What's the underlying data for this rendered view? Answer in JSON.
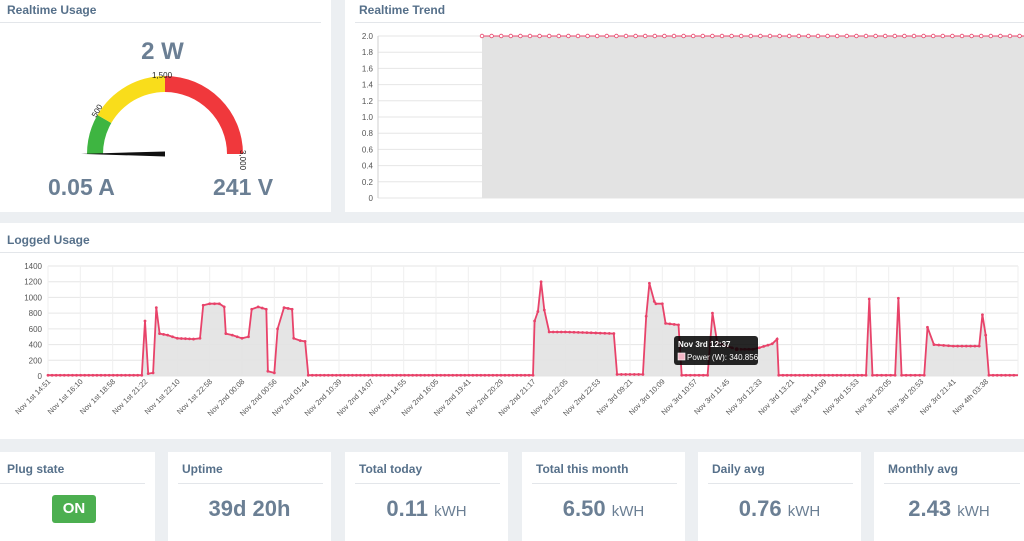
{
  "realtime_usage": {
    "title": "Realtime Usage",
    "power": "2 W",
    "current": "0.05 A",
    "voltage": "241 V",
    "gauge_labels": [
      "500",
      "1,500",
      "3,000"
    ],
    "gauge_value": 2,
    "gauge_max": 3000,
    "gauge_colors": {
      "green": "#3eb541",
      "yellow": "#f9dd1b",
      "red": "#f0383c"
    }
  },
  "realtime_trend": {
    "title": "Realtime Trend",
    "y_ticks": [
      "2.0",
      "1.8",
      "1.6",
      "1.4",
      "1.2",
      "1.0",
      "0.8",
      "0.6",
      "0.4",
      "0.2",
      "0"
    ],
    "value": 2.0
  },
  "logged_usage": {
    "title": "Logged Usage",
    "y_ticks": [
      "1400",
      "1200",
      "1000",
      "800",
      "600",
      "400",
      "200",
      "0"
    ],
    "x_ticks": [
      "Nov 1st 14:51",
      "Nov 1st 16:10",
      "Nov 1st 18:58",
      "Nov 1st 21:22",
      "Nov 1st 22:10",
      "Nov 1st 22:58",
      "Nov 2nd 00:08",
      "Nov 2nd 00:56",
      "Nov 2nd 01:44",
      "Nov 2nd 10:39",
      "Nov 2nd 14:07",
      "Nov 2nd 14:55",
      "Nov 2nd 16:05",
      "Nov 2nd 19:41",
      "Nov 2nd 20:29",
      "Nov 2nd 21:17",
      "Nov 2nd 22:05",
      "Nov 2nd 22:53",
      "Nov 3rd 09:21",
      "Nov 3rd 10:09",
      "Nov 3rd 10:57",
      "Nov 3rd 11:45",
      "Nov 3rd 12:33",
      "Nov 3rd 13:21",
      "Nov 3rd 14:09",
      "Nov 3rd 15:53",
      "Nov 3rd 20:05",
      "Nov 3rd 20:53",
      "Nov 3rd 21:41",
      "Nov 4th 03:38"
    ],
    "tooltip": {
      "title": "Nov 3rd 12:37",
      "text": "Power (W): 340.856"
    },
    "line_color": "#e8436a"
  },
  "chart_data": [
    {
      "type": "line",
      "title": "Realtime Trend",
      "yticks": [
        0,
        0.2,
        0.4,
        0.6,
        0.8,
        1.0,
        1.2,
        1.4,
        1.6,
        1.8,
        2.0
      ],
      "ylim": [
        0,
        2.0
      ],
      "series": [
        {
          "values": [
            2.0
          ]
        }
      ]
    },
    {
      "type": "area",
      "title": "Logged Usage",
      "ylim": [
        0,
        1400
      ],
      "x": [
        "Nov 1st 14:51",
        "Nov 1st 16:10",
        "Nov 1st 18:58",
        "Nov 1st 21:22",
        "Nov 1st 22:10",
        "Nov 1st 22:58",
        "Nov 2nd 00:08",
        "Nov 2nd 00:56",
        "Nov 2nd 01:44",
        "Nov 2nd 10:39",
        "Nov 2nd 14:07",
        "Nov 2nd 14:55",
        "Nov 2nd 16:05",
        "Nov 2nd 19:41",
        "Nov 2nd 20:29",
        "Nov 2nd 21:17",
        "Nov 2nd 22:05",
        "Nov 2nd 22:53",
        "Nov 3rd 09:21",
        "Nov 3rd 10:09",
        "Nov 3rd 10:57",
        "Nov 3rd 11:45",
        "Nov 3rd 12:33",
        "Nov 3rd 13:21",
        "Nov 3rd 14:09",
        "Nov 3rd 15:53",
        "Nov 3rd 20:05",
        "Nov 3rd 20:53",
        "Nov 3rd 21:41",
        "Nov 4th 03:38"
      ],
      "series": [
        {
          "name": "Power (W)",
          "values": [
            [
              0,
              10
            ],
            [
              2.9,
              10
            ],
            [
              3.0,
              700
            ],
            [
              3.1,
              30
            ],
            [
              3.25,
              40
            ],
            [
              3.35,
              870
            ],
            [
              3.45,
              540
            ],
            [
              3.7,
              520
            ],
            [
              4.0,
              480
            ],
            [
              4.5,
              470
            ],
            [
              4.7,
              480
            ],
            [
              4.8,
              900
            ],
            [
              5.0,
              920
            ],
            [
              5.3,
              920
            ],
            [
              5.45,
              880
            ],
            [
              5.5,
              540
            ],
            [
              5.7,
              520
            ],
            [
              6.0,
              480
            ],
            [
              6.2,
              500
            ],
            [
              6.3,
              850
            ],
            [
              6.5,
              880
            ],
            [
              6.75,
              850
            ],
            [
              6.8,
              60
            ],
            [
              7.0,
              40
            ],
            [
              7.1,
              600
            ],
            [
              7.3,
              870
            ],
            [
              7.55,
              850
            ],
            [
              7.6,
              480
            ],
            [
              7.8,
              450
            ],
            [
              7.95,
              440
            ],
            [
              8.05,
              10
            ],
            [
              15.0,
              10
            ],
            [
              15.05,
              700
            ],
            [
              15.15,
              820
            ],
            [
              15.25,
              1200
            ],
            [
              15.35,
              840
            ],
            [
              15.5,
              560
            ],
            [
              16.0,
              560
            ],
            [
              16.8,
              550
            ],
            [
              17.5,
              540
            ],
            [
              17.6,
              20
            ],
            [
              18.4,
              20
            ],
            [
              18.5,
              760
            ],
            [
              18.6,
              1180
            ],
            [
              18.75,
              950
            ],
            [
              18.8,
              920
            ],
            [
              19.0,
              920
            ],
            [
              19.1,
              670
            ],
            [
              19.5,
              650
            ],
            [
              19.6,
              10
            ],
            [
              20.4,
              10
            ],
            [
              20.55,
              800
            ],
            [
              20.7,
              420
            ],
            [
              21.0,
              380
            ],
            [
              21.3,
              340
            ],
            [
              21.8,
              340
            ],
            [
              22.0,
              360
            ],
            [
              22.4,
              410
            ],
            [
              22.55,
              470
            ],
            [
              22.6,
              10
            ],
            [
              25.3,
              10
            ],
            [
              25.4,
              980
            ],
            [
              25.5,
              10
            ],
            [
              26.2,
              10
            ],
            [
              26.3,
              990
            ],
            [
              26.4,
              10
            ],
            [
              27.1,
              10
            ],
            [
              27.2,
              620
            ],
            [
              27.4,
              400
            ],
            [
              28.0,
              380
            ],
            [
              28.8,
              380
            ],
            [
              28.9,
              780
            ],
            [
              29.0,
              520
            ],
            [
              29.1,
              10
            ],
            [
              30,
              10
            ]
          ]
        }
      ]
    }
  ],
  "stats": {
    "plug_state": {
      "label": "Plug state",
      "value": "ON"
    },
    "uptime": {
      "label": "Uptime",
      "value": "39d 20h"
    },
    "total_today": {
      "label": "Total today",
      "value": "0.11",
      "unit": "kWH"
    },
    "total_month": {
      "label": "Total this month",
      "value": "6.50",
      "unit": "kWH"
    },
    "daily_avg": {
      "label": "Daily avg",
      "value": "0.76",
      "unit": "kWH"
    },
    "monthly_avg": {
      "label": "Monthly avg",
      "value": "2.43",
      "unit": "kWH"
    }
  }
}
